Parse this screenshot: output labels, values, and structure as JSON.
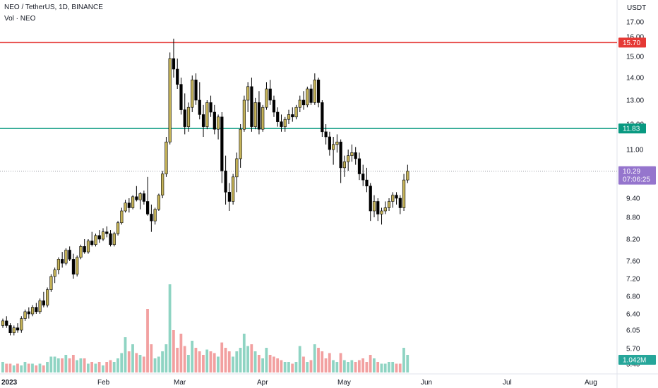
{
  "header": {
    "title": "NEO / TetherUS, 1D, BINANCE",
    "volume_label": "Vol · NEO"
  },
  "colors": {
    "up": "#c5b358",
    "down": "#000000",
    "vol_up": "#8fd4c3",
    "vol_down": "#f2a0a0",
    "resistance": "#e53935",
    "support": "#089981",
    "price": "#9575cd",
    "volume_badge": "#26a69a"
  },
  "chart_data": {
    "type": "candlestick",
    "currency": "USDT",
    "y_ticks": [
      "17.00",
      "16.00",
      "15.00",
      "14.00",
      "13.00",
      "12.00",
      "11.00",
      "10.29",
      "9.40",
      "8.80",
      "8.20",
      "7.60",
      "7.20",
      "6.80",
      "6.40",
      "6.05",
      "5.70",
      "5.40"
    ],
    "x_ticks": [
      "2023",
      "Feb",
      "Mar",
      "Apr",
      "May",
      "Jun",
      "Jul",
      "Aug"
    ],
    "horizontal_lines": [
      {
        "value": 15.7,
        "label": "15.70",
        "color": "#e53935"
      },
      {
        "value": 11.83,
        "label": "11.83",
        "color": "#089981"
      }
    ],
    "last_price": {
      "value": 10.29,
      "label": "10.29",
      "countdown": "07:06:25"
    },
    "volume_last": "1.042M",
    "candles": [
      [
        6.15,
        6.3,
        6.1,
        6.25
      ],
      [
        6.25,
        6.35,
        6.1,
        6.15
      ],
      [
        6.15,
        6.2,
        5.95,
        6.0
      ],
      [
        6.0,
        6.15,
        5.95,
        6.1
      ],
      [
        6.1,
        6.2,
        6.0,
        6.05
      ],
      [
        6.05,
        6.35,
        6.0,
        6.3
      ],
      [
        6.3,
        6.5,
        6.25,
        6.45
      ],
      [
        6.45,
        6.55,
        6.3,
        6.4
      ],
      [
        6.4,
        6.6,
        6.35,
        6.55
      ],
      [
        6.55,
        6.65,
        6.4,
        6.45
      ],
      [
        6.45,
        6.75,
        6.4,
        6.7
      ],
      [
        6.7,
        6.9,
        6.55,
        6.6
      ],
      [
        6.6,
        7.0,
        6.55,
        6.95
      ],
      [
        6.95,
        7.3,
        6.9,
        7.25
      ],
      [
        7.25,
        7.45,
        7.1,
        7.4
      ],
      [
        7.4,
        7.7,
        7.3,
        7.65
      ],
      [
        7.65,
        7.85,
        7.45,
        7.55
      ],
      [
        7.55,
        7.95,
        7.5,
        7.9
      ],
      [
        7.9,
        8.0,
        7.6,
        7.65
      ],
      [
        7.65,
        7.8,
        7.2,
        7.3
      ],
      [
        7.3,
        7.75,
        7.25,
        7.7
      ],
      [
        7.7,
        8.05,
        7.65,
        8.0
      ],
      [
        8.0,
        8.2,
        7.8,
        7.85
      ],
      [
        7.85,
        8.2,
        7.8,
        8.15
      ],
      [
        8.15,
        8.4,
        8.0,
        8.05
      ],
      [
        8.05,
        8.35,
        8.0,
        8.3
      ],
      [
        8.3,
        8.45,
        8.1,
        8.2
      ],
      [
        8.2,
        8.5,
        8.15,
        8.4
      ],
      [
        8.4,
        8.55,
        8.25,
        8.35
      ],
      [
        8.35,
        8.45,
        8.0,
        8.05
      ],
      [
        8.05,
        8.4,
        8.0,
        8.35
      ],
      [
        8.35,
        8.7,
        8.3,
        8.65
      ],
      [
        8.65,
        9.1,
        8.6,
        9.0
      ],
      [
        9.0,
        9.35,
        8.95,
        9.25
      ],
      [
        9.25,
        9.4,
        8.95,
        9.1
      ],
      [
        9.1,
        9.5,
        9.05,
        9.45
      ],
      [
        9.45,
        9.8,
        9.3,
        9.35
      ],
      [
        9.35,
        9.6,
        9.05,
        9.55
      ],
      [
        9.55,
        9.65,
        9.2,
        9.3
      ],
      [
        9.3,
        10.1,
        8.85,
        8.9
      ],
      [
        8.9,
        9.2,
        8.4,
        8.7
      ],
      [
        8.7,
        9.1,
        8.6,
        9.05
      ],
      [
        9.05,
        9.55,
        9.0,
        9.5
      ],
      [
        9.5,
        10.3,
        9.4,
        10.2
      ],
      [
        10.2,
        11.5,
        10.1,
        11.3
      ],
      [
        11.3,
        15.2,
        11.2,
        14.9
      ],
      [
        14.9,
        15.9,
        14.0,
        14.4
      ],
      [
        14.4,
        14.9,
        13.5,
        13.7
      ],
      [
        13.7,
        14.0,
        12.4,
        12.6
      ],
      [
        12.6,
        13.3,
        11.6,
        11.9
      ],
      [
        11.9,
        12.9,
        11.7,
        12.7
      ],
      [
        12.7,
        14.1,
        12.5,
        13.9
      ],
      [
        13.9,
        14.2,
        12.8,
        13.0
      ],
      [
        13.0,
        13.8,
        12.2,
        12.4
      ],
      [
        12.4,
        12.8,
        11.5,
        11.9
      ],
      [
        11.9,
        13.0,
        11.8,
        12.9
      ],
      [
        12.9,
        13.2,
        12.3,
        12.5
      ],
      [
        12.5,
        12.8,
        11.6,
        11.8
      ],
      [
        11.8,
        12.4,
        11.4,
        12.3
      ],
      [
        12.3,
        12.5,
        9.9,
        10.3
      ],
      [
        10.3,
        10.8,
        9.2,
        9.6
      ],
      [
        9.6,
        9.9,
        9.0,
        9.3
      ],
      [
        9.3,
        10.2,
        9.2,
        10.1
      ],
      [
        10.1,
        10.9,
        9.6,
        10.7
      ],
      [
        10.7,
        12.0,
        10.4,
        11.8
      ],
      [
        11.8,
        13.2,
        11.7,
        13.0
      ],
      [
        13.0,
        13.8,
        12.5,
        13.6
      ],
      [
        13.6,
        14.0,
        11.7,
        11.9
      ],
      [
        11.9,
        13.1,
        11.8,
        12.9
      ],
      [
        12.9,
        13.4,
        11.6,
        11.8
      ],
      [
        11.8,
        12.8,
        11.7,
        12.7
      ],
      [
        12.7,
        13.8,
        12.6,
        13.5
      ],
      [
        13.5,
        13.9,
        12.8,
        13.0
      ],
      [
        13.0,
        13.2,
        12.3,
        12.5
      ],
      [
        12.5,
        12.7,
        11.9,
        12.1
      ],
      [
        12.1,
        12.4,
        11.7,
        11.9
      ],
      [
        11.9,
        12.3,
        11.7,
        12.2
      ],
      [
        12.2,
        12.6,
        12.0,
        12.4
      ],
      [
        12.4,
        12.7,
        12.1,
        12.3
      ],
      [
        12.3,
        12.8,
        12.2,
        12.7
      ],
      [
        12.7,
        13.2,
        12.5,
        13.0
      ],
      [
        13.0,
        13.4,
        12.6,
        12.8
      ],
      [
        12.8,
        13.6,
        12.7,
        13.5
      ],
      [
        13.5,
        13.7,
        12.8,
        12.9
      ],
      [
        12.9,
        14.2,
        12.8,
        13.9
      ],
      [
        13.9,
        14.0,
        12.7,
        12.9
      ],
      [
        12.9,
        13.0,
        11.5,
        11.7
      ],
      [
        11.7,
        12.0,
        11.2,
        11.5
      ],
      [
        11.5,
        11.7,
        10.8,
        11.0
      ],
      [
        11.0,
        11.5,
        10.5,
        11.2
      ],
      [
        11.2,
        11.6,
        10.9,
        11.3
      ],
      [
        11.3,
        11.4,
        9.9,
        10.4
      ],
      [
        10.4,
        10.8,
        10.1,
        10.6
      ],
      [
        10.6,
        11.0,
        10.3,
        10.8
      ],
      [
        10.8,
        11.2,
        10.6,
        10.9
      ],
      [
        10.9,
        11.1,
        10.5,
        10.7
      ],
      [
        10.7,
        10.9,
        10.0,
        10.2
      ],
      [
        10.2,
        10.5,
        9.8,
        10.0
      ],
      [
        10.0,
        10.4,
        9.6,
        9.8
      ],
      [
        9.8,
        9.9,
        8.7,
        9.0
      ],
      [
        9.0,
        9.5,
        8.8,
        9.3
      ],
      [
        9.3,
        9.4,
        8.7,
        8.9
      ],
      [
        8.9,
        9.1,
        8.6,
        9.0
      ],
      [
        9.0,
        9.3,
        8.9,
        9.1
      ],
      [
        9.1,
        9.4,
        9.0,
        9.3
      ],
      [
        9.3,
        9.6,
        9.1,
        9.5
      ],
      [
        9.5,
        9.6,
        9.2,
        9.4
      ],
      [
        9.4,
        9.5,
        8.9,
        9.1
      ],
      [
        9.1,
        10.2,
        9.0,
        10.0
      ],
      [
        10.0,
        10.5,
        9.9,
        10.29
      ]
    ],
    "volumes": [
      [
        1,
        0.6
      ],
      [
        0,
        0.5
      ],
      [
        0,
        0.5
      ],
      [
        1,
        0.4
      ],
      [
        0,
        0.5
      ],
      [
        1,
        0.4
      ],
      [
        1,
        0.6
      ],
      [
        0,
        0.5
      ],
      [
        1,
        0.5
      ],
      [
        0,
        0.4
      ],
      [
        1,
        0.5
      ],
      [
        0,
        0.4
      ],
      [
        1,
        0.6
      ],
      [
        1,
        0.9
      ],
      [
        1,
        0.9
      ],
      [
        1,
        0.8
      ],
      [
        0,
        0.8
      ],
      [
        1,
        1.0
      ],
      [
        0,
        0.8
      ],
      [
        0,
        1.0
      ],
      [
        1,
        0.7
      ],
      [
        1,
        0.8
      ],
      [
        0,
        0.8
      ],
      [
        1,
        0.5
      ],
      [
        0,
        0.6
      ],
      [
        1,
        0.5
      ],
      [
        0,
        0.6
      ],
      [
        1,
        0.4
      ],
      [
        0,
        0.6
      ],
      [
        0,
        0.7
      ],
      [
        1,
        0.6
      ],
      [
        1,
        0.8
      ],
      [
        1,
        1.1
      ],
      [
        1,
        2.0
      ],
      [
        0,
        1.2
      ],
      [
        1,
        1.6
      ],
      [
        0,
        1.1
      ],
      [
        1,
        1.0
      ],
      [
        0,
        0.9
      ],
      [
        0,
        3.6
      ],
      [
        0,
        1.6
      ],
      [
        1,
        0.8
      ],
      [
        1,
        0.9
      ],
      [
        1,
        1.2
      ],
      [
        1,
        1.6
      ],
      [
        1,
        5.0
      ],
      [
        0,
        2.4
      ],
      [
        0,
        1.4
      ],
      [
        0,
        2.2
      ],
      [
        0,
        1.5
      ],
      [
        1,
        1.0
      ],
      [
        1,
        1.8
      ],
      [
        0,
        1.4
      ],
      [
        0,
        1.2
      ],
      [
        0,
        1.0
      ],
      [
        1,
        1.3
      ],
      [
        0,
        1.2
      ],
      [
        0,
        1.1
      ],
      [
        1,
        0.9
      ],
      [
        0,
        1.7
      ],
      [
        0,
        1.4
      ],
      [
        0,
        1.2
      ],
      [
        1,
        0.9
      ],
      [
        1,
        1.2
      ],
      [
        1,
        1.4
      ],
      [
        1,
        2.2
      ],
      [
        1,
        1.5
      ],
      [
        0,
        1.6
      ],
      [
        1,
        1.2
      ],
      [
        0,
        1.0
      ],
      [
        1,
        0.8
      ],
      [
        1,
        1.4
      ],
      [
        0,
        1.0
      ],
      [
        0,
        0.9
      ],
      [
        0,
        0.8
      ],
      [
        0,
        0.7
      ],
      [
        1,
        0.6
      ],
      [
        1,
        0.6
      ],
      [
        0,
        0.5
      ],
      [
        1,
        0.6
      ],
      [
        1,
        1.5
      ],
      [
        0,
        0.9
      ],
      [
        1,
        0.6
      ],
      [
        0,
        0.7
      ],
      [
        1,
        1.6
      ],
      [
        0,
        1.4
      ],
      [
        0,
        1.2
      ],
      [
        0,
        0.8
      ],
      [
        0,
        1.1
      ],
      [
        1,
        0.7
      ],
      [
        1,
        0.6
      ],
      [
        0,
        1.1
      ],
      [
        1,
        0.7
      ],
      [
        1,
        0.6
      ],
      [
        1,
        0.7
      ],
      [
        0,
        0.6
      ],
      [
        0,
        0.7
      ],
      [
        0,
        0.8
      ],
      [
        0,
        0.6
      ],
      [
        0,
        1.0
      ],
      [
        1,
        0.8
      ],
      [
        0,
        0.6
      ],
      [
        1,
        0.5
      ],
      [
        1,
        0.5
      ],
      [
        1,
        0.6
      ],
      [
        1,
        0.6
      ],
      [
        0,
        0.5
      ],
      [
        0,
        0.5
      ],
      [
        1,
        1.4
      ],
      [
        1,
        1.0
      ]
    ]
  }
}
